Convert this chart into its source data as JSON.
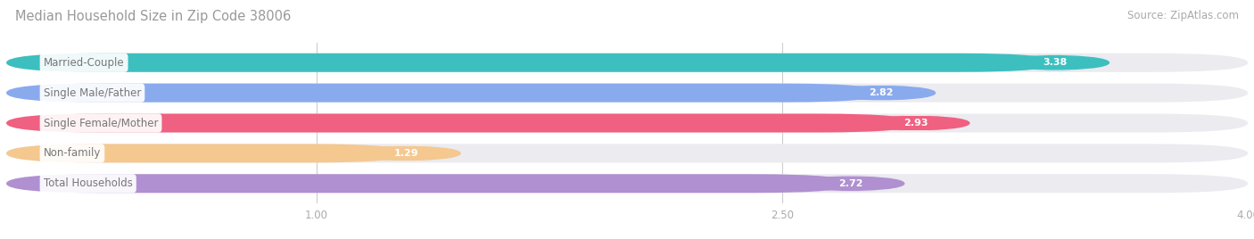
{
  "title": "Median Household Size in Zip Code 38006",
  "source": "Source: ZipAtlas.com",
  "categories": [
    "Married-Couple",
    "Single Male/Father",
    "Single Female/Mother",
    "Non-family",
    "Total Households"
  ],
  "values": [
    3.38,
    2.82,
    2.93,
    1.29,
    2.72
  ],
  "bar_colors": [
    "#3dbfbf",
    "#8aaaee",
    "#f06080",
    "#f5c890",
    "#b090d0"
  ],
  "track_color": "#ebebf0",
  "xlim": [
    0,
    4.0
  ],
  "xticks": [
    1.0,
    2.5,
    4.0
  ],
  "label_color": "#777777",
  "value_color": "#ffffff",
  "title_color": "#999999",
  "source_color": "#aaaaaa",
  "bar_height": 0.62,
  "background_color": "#ffffff",
  "fig_width": 14.06,
  "fig_height": 2.68,
  "dpi": 100
}
